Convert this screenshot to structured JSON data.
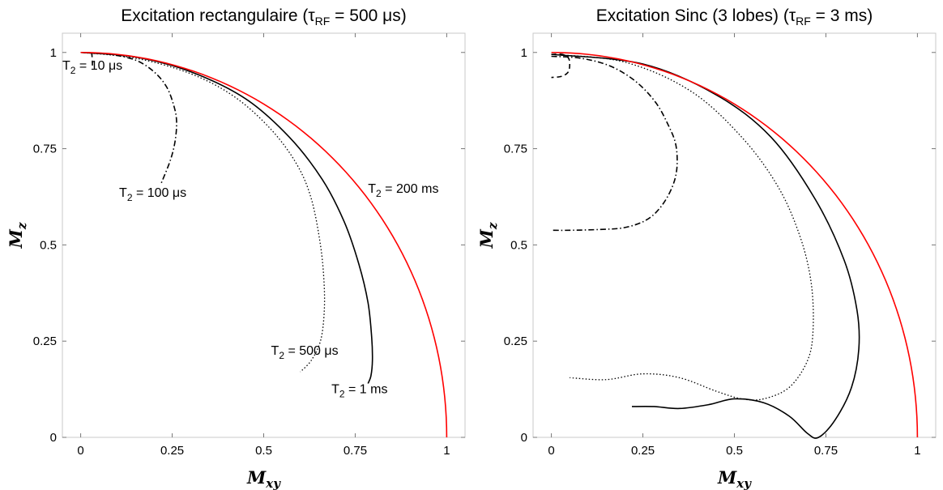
{
  "chart_data": [
    {
      "type": "line",
      "title": "Excitation rectangulaire (τRF = 500 μs)",
      "title_parts": {
        "pre": "Excitation rectangulaire (τ",
        "sub": "RF",
        "post": " = 500 μs)"
      },
      "xlabel": "Mxy",
      "ylabel": "Mz",
      "xlim": [
        -0.05,
        1.05
      ],
      "ylim": [
        0,
        1.05
      ],
      "xticks": [
        0,
        0.25,
        0.5,
        0.75,
        1
      ],
      "xtick_labels": [
        "0",
        "0.25",
        "0.5",
        "0.75",
        "1"
      ],
      "yticks": [
        0,
        0.25,
        0.5,
        0.75,
        1
      ],
      "ytick_labels": [
        "0",
        "0.25",
        "0.5",
        "0.75",
        "1"
      ],
      "grid": false,
      "series": [
        {
          "name": "T2 = 10 μs",
          "color": "#000000",
          "dash": "dashed",
          "x": [
            0.03,
            0.031,
            0.032,
            0.032
          ],
          "y": [
            1.0,
            0.99,
            0.975,
            0.965
          ]
        },
        {
          "name": "T2 = 100 μs",
          "color": "#000000",
          "dash": "dashdot",
          "x": [
            0.0,
            0.08,
            0.15,
            0.2,
            0.235,
            0.255,
            0.262,
            0.258,
            0.245,
            0.22
          ],
          "y": [
            1.0,
            0.995,
            0.98,
            0.95,
            0.91,
            0.86,
            0.82,
            0.77,
            0.72,
            0.66
          ]
        },
        {
          "name": "T2 = 500 μs",
          "color": "#000000",
          "dash": "dotted",
          "x": [
            0.0,
            0.15,
            0.3,
            0.42,
            0.52,
            0.59,
            0.63,
            0.655,
            0.665,
            0.665,
            0.655,
            0.63,
            0.6
          ],
          "y": [
            1.0,
            0.985,
            0.945,
            0.885,
            0.8,
            0.71,
            0.62,
            0.5,
            0.4,
            0.32,
            0.25,
            0.2,
            0.17
          ]
        },
        {
          "name": "T2 = 1 ms",
          "color": "#000000",
          "dash": "solid",
          "x": [
            0.0,
            0.15,
            0.3,
            0.45,
            0.57,
            0.66,
            0.72,
            0.76,
            0.785,
            0.795,
            0.797,
            0.793,
            0.785
          ],
          "y": [
            1.0,
            0.988,
            0.95,
            0.88,
            0.78,
            0.67,
            0.56,
            0.45,
            0.35,
            0.26,
            0.2,
            0.16,
            0.14
          ]
        },
        {
          "name": "T2 = 200 ms",
          "color": "#ff0000",
          "dash": "solid",
          "shape": "circle",
          "x": [
            0.0,
            0.259,
            0.5,
            0.707,
            0.866,
            0.966,
            1.0
          ],
          "y": [
            1.0,
            0.966,
            0.866,
            0.707,
            0.5,
            0.259,
            0.0
          ]
        }
      ],
      "annotations": [
        {
          "pre": "T",
          "sub": "2",
          "post": " = 10 μs",
          "x": -0.05,
          "y": 0.955
        },
        {
          "pre": "T",
          "sub": "2",
          "post": " = 100 μs",
          "x": 0.105,
          "y": 0.625
        },
        {
          "pre": "T",
          "sub": "2",
          "post": " = 200 ms",
          "x": 0.785,
          "y": 0.635
        },
        {
          "pre": "T",
          "sub": "2",
          "post": " = 500 μs",
          "x": 0.52,
          "y": 0.215
        },
        {
          "pre": "T",
          "sub": "2",
          "post": " = 1 ms",
          "x": 0.685,
          "y": 0.115
        }
      ]
    },
    {
      "type": "line",
      "title": "Excitation Sinc (3 lobes) (τRF = 3 ms)",
      "title_parts": {
        "pre": "Excitation Sinc (3 lobes) (τ",
        "sub": "RF",
        "post": " = 3 ms)"
      },
      "xlabel": "Mxy",
      "ylabel": "Mz",
      "xlim": [
        -0.05,
        1.05
      ],
      "ylim": [
        0,
        1.05
      ],
      "xticks": [
        0,
        0.25,
        0.5,
        0.75,
        1
      ],
      "xtick_labels": [
        "0",
        "0.25",
        "0.5",
        "0.75",
        "1"
      ],
      "yticks": [
        0,
        0.25,
        0.5,
        0.75,
        1
      ],
      "ytick_labels": [
        "0",
        "0.25",
        "0.5",
        "0.75",
        "1"
      ],
      "grid": false,
      "series": [
        {
          "name": "T2 = 10 μs",
          "color": "#000000",
          "dash": "dashed",
          "x": [
            0.0,
            0.03,
            0.047,
            0.05,
            0.045,
            0.028,
            0.0
          ],
          "y": [
            0.995,
            0.995,
            0.985,
            0.965,
            0.948,
            0.938,
            0.935
          ]
        },
        {
          "name": "T2 = 100 μs",
          "color": "#000000",
          "dash": "dashdot",
          "x": [
            0.0,
            0.08,
            0.16,
            0.23,
            0.285,
            0.32,
            0.34,
            0.343,
            0.33,
            0.3,
            0.26,
            0.2,
            0.13,
            0.05,
            0.0
          ],
          "y": [
            0.99,
            0.985,
            0.965,
            0.925,
            0.87,
            0.81,
            0.76,
            0.7,
            0.65,
            0.6,
            0.565,
            0.545,
            0.54,
            0.538,
            0.538
          ]
        },
        {
          "name": "T2 = 500 μs",
          "color": "#000000",
          "dash": "dotted",
          "x": [
            0.0,
            0.2,
            0.38,
            0.52,
            0.62,
            0.68,
            0.71,
            0.715,
            0.7,
            0.65,
            0.58,
            0.52,
            0.45,
            0.35,
            0.25,
            0.15,
            0.05
          ],
          "y": [
            0.995,
            0.975,
            0.9,
            0.78,
            0.65,
            0.52,
            0.4,
            0.28,
            0.2,
            0.13,
            0.1,
            0.1,
            0.12,
            0.155,
            0.165,
            0.15,
            0.155
          ]
        },
        {
          "name": "T2 = 1 ms",
          "color": "#000000",
          "dash": "solid",
          "x": [
            0.0,
            0.25,
            0.45,
            0.6,
            0.72,
            0.8,
            0.835,
            0.84,
            0.82,
            0.775,
            0.73,
            0.7,
            0.65,
            0.58,
            0.5,
            0.43,
            0.35,
            0.28,
            0.22
          ],
          "y": [
            0.995,
            0.97,
            0.89,
            0.78,
            0.62,
            0.46,
            0.33,
            0.23,
            0.13,
            0.045,
            0.0,
            0.01,
            0.055,
            0.09,
            0.1,
            0.085,
            0.075,
            0.08,
            0.08
          ]
        },
        {
          "name": "T2 = 200 ms",
          "color": "#ff0000",
          "dash": "solid",
          "shape": "circle",
          "x": [
            0.0,
            0.259,
            0.5,
            0.707,
            0.866,
            0.966,
            1.0
          ],
          "y": [
            1.0,
            0.966,
            0.866,
            0.707,
            0.5,
            0.259,
            0.0
          ]
        }
      ],
      "annotations": []
    }
  ]
}
